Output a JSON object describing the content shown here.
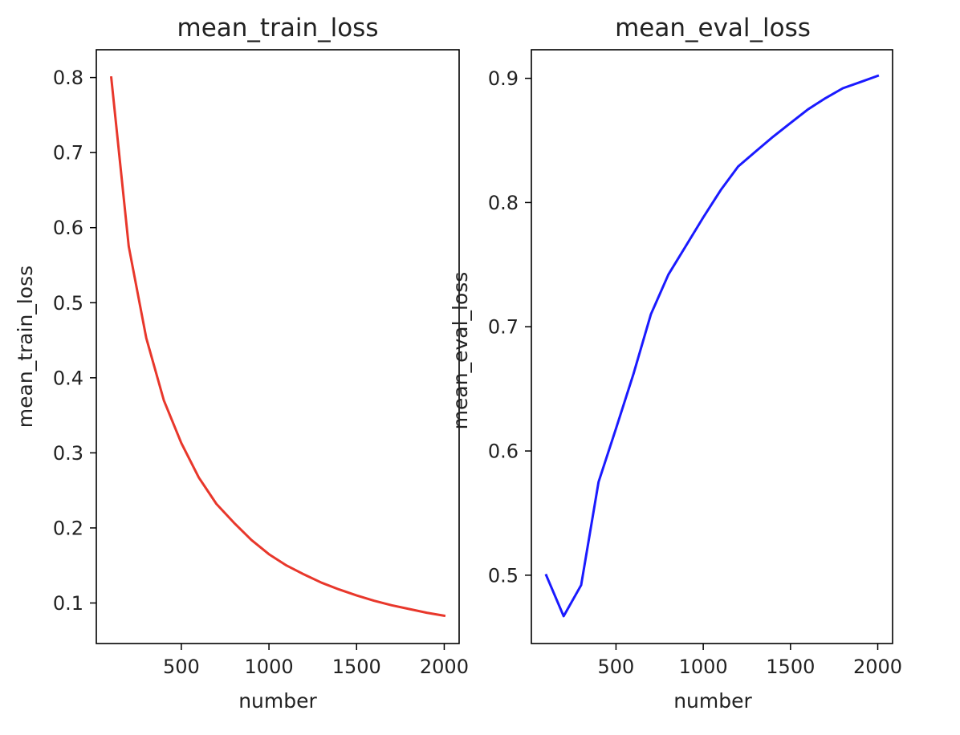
{
  "chart_data": [
    {
      "type": "line",
      "title": "mean_train_loss",
      "xlabel": "number",
      "ylabel": "mean_train_loss",
      "xlim": [
        15,
        2085
      ],
      "ylim": [
        0.046,
        0.837
      ],
      "x_ticks": [
        500,
        1000,
        1500,
        2000
      ],
      "y_ticks": [
        0.1,
        0.2,
        0.3,
        0.4,
        0.5,
        0.6,
        0.7,
        0.8
      ],
      "x_tick_labels": [
        "500",
        "1000",
        "1500",
        "2000"
      ],
      "y_tick_labels": [
        "0.1",
        "0.2",
        "0.3",
        "0.4",
        "0.5",
        "0.6",
        "0.7",
        "0.8"
      ],
      "grid": false,
      "color": "#e8372b",
      "x": [
        100,
        200,
        300,
        400,
        500,
        600,
        700,
        800,
        900,
        1000,
        1100,
        1200,
        1300,
        1400,
        1500,
        1600,
        1700,
        1800,
        1900,
        2000
      ],
      "y": [
        0.8,
        0.575,
        0.453,
        0.37,
        0.313,
        0.267,
        0.232,
        0.207,
        0.184,
        0.165,
        0.15,
        0.138,
        0.127,
        0.118,
        0.11,
        0.103,
        0.097,
        0.092,
        0.087,
        0.083
      ]
    },
    {
      "type": "line",
      "title": "mean_eval_loss",
      "xlabel": "number",
      "ylabel": "mean_eval_loss",
      "xlim": [
        15,
        2085
      ],
      "ylim": [
        0.445,
        0.923
      ],
      "x_ticks": [
        500,
        1000,
        1500,
        2000
      ],
      "y_ticks": [
        0.5,
        0.6,
        0.7,
        0.8,
        0.9
      ],
      "x_tick_labels": [
        "500",
        "1000",
        "1500",
        "2000"
      ],
      "y_tick_labels": [
        "0.5",
        "0.6",
        "0.7",
        "0.8",
        "0.9"
      ],
      "grid": false,
      "color": "#1a1aff",
      "x": [
        100,
        200,
        300,
        400,
        500,
        600,
        700,
        800,
        900,
        1000,
        1100,
        1200,
        1300,
        1400,
        1500,
        1600,
        1700,
        1800,
        1900,
        2000
      ],
      "y": [
        0.5,
        0.467,
        0.492,
        0.575,
        0.618,
        0.662,
        0.71,
        0.742,
        0.765,
        0.788,
        0.81,
        0.829,
        0.841,
        0.853,
        0.864,
        0.875,
        0.884,
        0.892,
        0.897,
        0.902
      ]
    }
  ]
}
